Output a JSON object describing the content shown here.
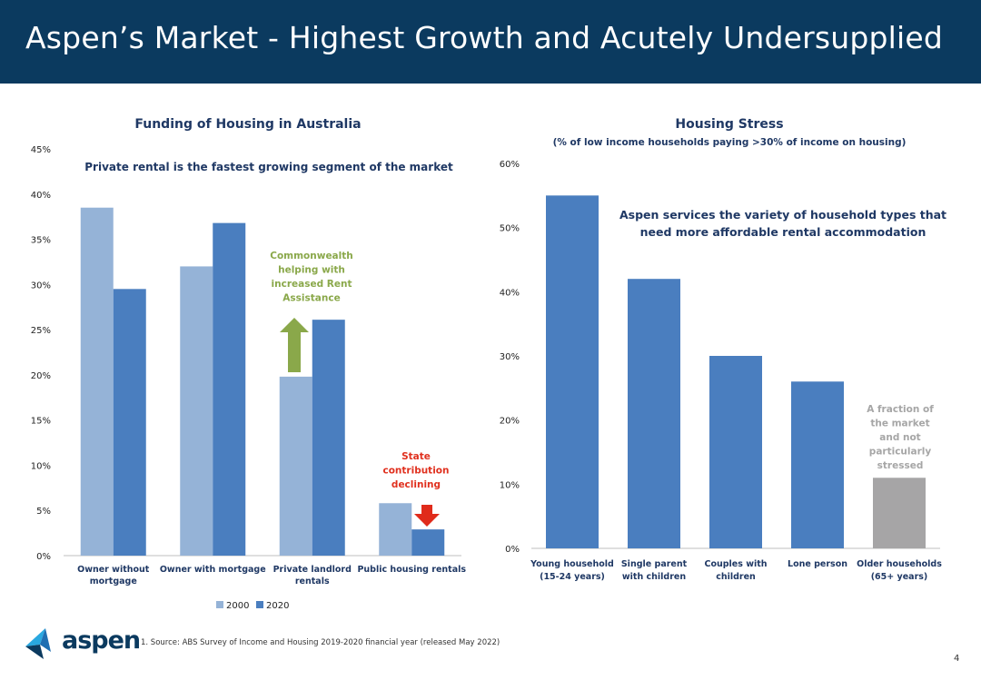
{
  "header": {
    "title": "Aspen’s Market - Highest Growth and Acutely Undersupplied"
  },
  "colors": {
    "header_bg": "#0b3a5f",
    "series_2000": "#95b3d7",
    "series_2020": "#4a7ebf",
    "older_bar": "#a6a5a6",
    "arrow_up": "#8aa84a",
    "arrow_down": "#e02b1b"
  },
  "chart_data": [
    {
      "type": "bar",
      "title": "Funding of Housing in Australia",
      "subtitle": "Private rental is the fastest growing segment of the market",
      "categories": [
        [
          "Owner without",
          "mortgage"
        ],
        [
          "Owner with mortgage"
        ],
        [
          "Private landlord",
          "rentals"
        ],
        [
          "Public housing rentals"
        ]
      ],
      "series": [
        {
          "name": "2000",
          "values": [
            38.5,
            32,
            19.8,
            5.8
          ]
        },
        {
          "name": "2020",
          "values": [
            29.5,
            36.8,
            26.1,
            2.9
          ]
        }
      ],
      "ylim": [
        0,
        45
      ],
      "yticks": [
        0,
        5,
        10,
        15,
        20,
        25,
        30,
        35,
        40,
        45
      ],
      "ytick_labels": [
        "0%",
        "5%",
        "10%",
        "15%",
        "20%",
        "25%",
        "30%",
        "35%",
        "40%",
        "45%"
      ],
      "legend": [
        "2000",
        "2020"
      ],
      "annotations": {
        "commonwealth": [
          "Commonwealth",
          "helping with",
          "increased Rent",
          "Assistance"
        ],
        "state": [
          "State",
          "contribution",
          "declining"
        ]
      }
    },
    {
      "type": "bar",
      "title": "Housing Stress",
      "subtitle": "(% of low income households paying >30% of income on housing)",
      "categories": [
        [
          "Young household",
          "(15-24 years)"
        ],
        [
          "Single parent",
          "with children"
        ],
        [
          "Couples with",
          "children"
        ],
        [
          "Lone person"
        ],
        [
          "Older households",
          "(65+ years)"
        ]
      ],
      "values": [
        55,
        42,
        30,
        26,
        11
      ],
      "ylim": [
        0,
        60
      ],
      "yticks": [
        0,
        10,
        20,
        30,
        40,
        50,
        60
      ],
      "ytick_labels": [
        "0%",
        "10%",
        "20%",
        "30%",
        "40%",
        "50%",
        "60%"
      ],
      "annotations": {
        "aspen": [
          "Aspen services the variety of household types that",
          "need more affordable rental accommodation"
        ],
        "fraction": [
          "A fraction of",
          "the market",
          "and not",
          "particularly",
          "stressed"
        ]
      }
    }
  ],
  "footer": {
    "logo_text": "aspen",
    "footnote": "1. Source: ABS Survey of Income and Housing 2019-2020 financial year (released May 2022)",
    "page_number": "4"
  }
}
